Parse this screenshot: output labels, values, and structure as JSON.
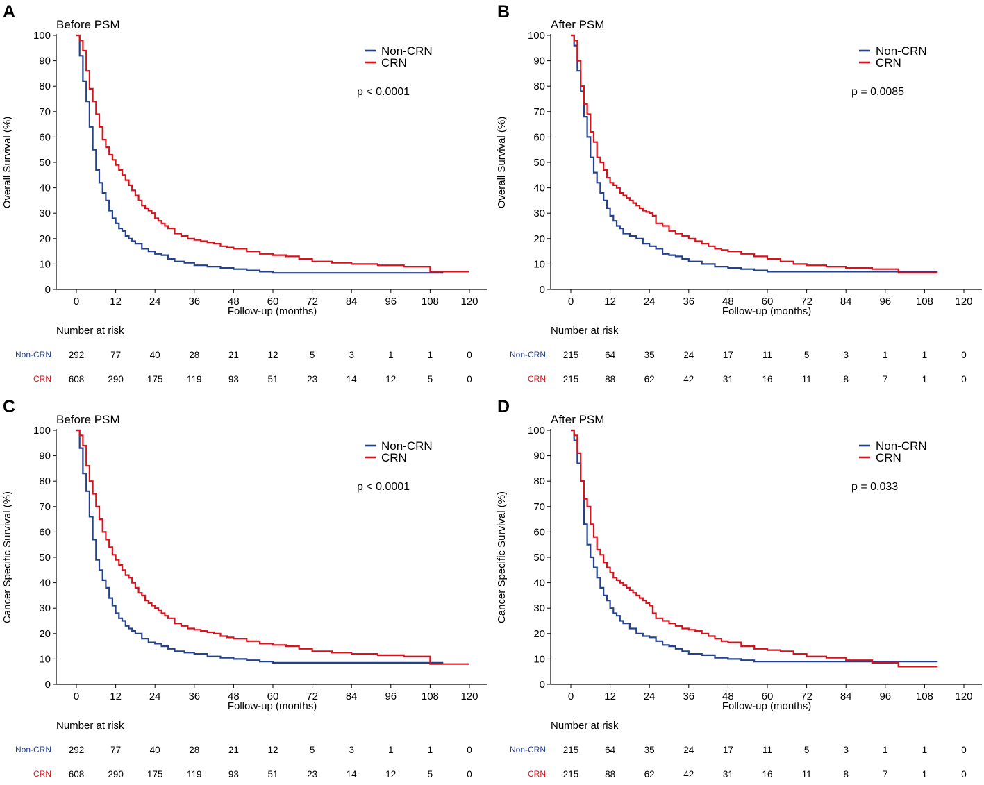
{
  "colors": {
    "noncrn": "#23418c",
    "crn": "#d8111b",
    "axis": "#000000"
  },
  "chart_data": [
    {
      "type": "line",
      "panel_label": "A",
      "title": "Before PSM",
      "xlabel": "Follow-up (months)",
      "ylabel": "Overall Survival (%)",
      "xlim": [
        0,
        120
      ],
      "ylim": [
        0,
        100
      ],
      "xticks": [
        0,
        12,
        24,
        36,
        48,
        60,
        72,
        84,
        96,
        108,
        120
      ],
      "yticks": [
        0,
        10,
        20,
        30,
        40,
        50,
        60,
        70,
        80,
        90,
        100
      ],
      "legend": [
        "Non-CRN",
        "CRN"
      ],
      "pvalue": "p < 0.0001",
      "series": [
        {
          "name": "Non-CRN",
          "color": "#23418c",
          "x": [
            0,
            1,
            2,
            3,
            4,
            5,
            6,
            7,
            8,
            9,
            10,
            11,
            12,
            13,
            14,
            15,
            16,
            17,
            18,
            20,
            22,
            24,
            26,
            28,
            30,
            33,
            36,
            40,
            44,
            48,
            52,
            56,
            60,
            70,
            80,
            100,
            112
          ],
          "y": [
            100,
            92,
            82,
            74,
            64,
            55,
            47,
            42,
            38,
            35,
            31,
            28,
            26,
            24,
            23,
            21,
            20,
            19,
            18,
            16,
            15,
            14,
            13.5,
            12,
            11,
            10.5,
            9.5,
            9,
            8.5,
            8,
            7.5,
            7,
            6.5,
            6.5,
            6.5,
            6.5,
            6.5
          ]
        },
        {
          "name": "CRN",
          "color": "#d8111b",
          "x": [
            0,
            1,
            2,
            3,
            4,
            5,
            6,
            7,
            8,
            9,
            10,
            11,
            12,
            13,
            14,
            15,
            16,
            17,
            18,
            19,
            20,
            21,
            22,
            23,
            24,
            25,
            26,
            27,
            28,
            30,
            32,
            34,
            36,
            38,
            40,
            42,
            44,
            46,
            48,
            52,
            56,
            60,
            64,
            68,
            72,
            78,
            84,
            92,
            100,
            108,
            120
          ],
          "y": [
            100,
            98,
            94,
            86,
            79,
            74,
            69,
            64,
            59,
            56,
            53,
            51,
            49,
            47,
            45,
            43,
            41,
            39,
            37,
            35,
            33,
            32,
            31,
            30,
            28,
            27,
            26,
            25,
            24,
            22,
            21,
            20,
            19.5,
            19,
            18.5,
            18,
            17,
            16.5,
            16,
            15,
            14,
            13.5,
            13,
            12,
            11,
            10.5,
            10,
            9.5,
            9,
            7,
            7
          ]
        }
      ],
      "risk_table": {
        "title": "Number at risk",
        "times": [
          0,
          12,
          24,
          36,
          48,
          60,
          72,
          84,
          96,
          108,
          120
        ],
        "rows": [
          {
            "name": "Non-CRN",
            "values": [
              "292",
              "77",
              "40",
              "28",
              "21",
              "12",
              "5",
              "3",
              "1",
              "1",
              "0"
            ]
          },
          {
            "name": "CRN",
            "values": [
              "608",
              "290",
              "175",
              "119",
              "93",
              "51",
              "23",
              "14",
              "12",
              "5",
              "0"
            ]
          }
        ]
      }
    },
    {
      "type": "line",
      "panel_label": "B",
      "title": "After PSM",
      "xlabel": "Follow-up (months)",
      "ylabel": "Overall Survival (%)",
      "xlim": [
        0,
        120
      ],
      "ylim": [
        0,
        100
      ],
      "xticks": [
        0,
        12,
        24,
        36,
        48,
        60,
        72,
        84,
        96,
        108,
        120
      ],
      "yticks": [
        0,
        10,
        20,
        30,
        40,
        50,
        60,
        70,
        80,
        90,
        100
      ],
      "legend": [
        "Non-CRN",
        "CRN"
      ],
      "pvalue": "p = 0.0085",
      "series": [
        {
          "name": "Non-CRN",
          "color": "#23418c",
          "x": [
            0,
            1,
            2,
            3,
            4,
            5,
            6,
            7,
            8,
            9,
            10,
            11,
            12,
            13,
            14,
            15,
            16,
            18,
            20,
            22,
            24,
            26,
            28,
            30,
            32,
            34,
            36,
            40,
            44,
            48,
            52,
            56,
            60,
            80,
            100,
            112
          ],
          "y": [
            100,
            96,
            86,
            78,
            68,
            60,
            52,
            46,
            42,
            38,
            35,
            32,
            29,
            27,
            25,
            24,
            22,
            21,
            20,
            18,
            17,
            16,
            14,
            13.5,
            13,
            12,
            11,
            10,
            9,
            8.5,
            8,
            7.5,
            7,
            7,
            7,
            7
          ]
        },
        {
          "name": "CRN",
          "color": "#d8111b",
          "x": [
            0,
            1,
            2,
            3,
            4,
            5,
            6,
            7,
            8,
            9,
            10,
            11,
            12,
            13,
            14,
            15,
            16,
            17,
            18,
            19,
            20,
            21,
            22,
            23,
            24,
            25,
            26,
            28,
            30,
            32,
            34,
            36,
            38,
            40,
            42,
            44,
            46,
            48,
            52,
            56,
            60,
            64,
            68,
            72,
            78,
            84,
            92,
            100,
            112
          ],
          "y": [
            100,
            98,
            90,
            80,
            73,
            69,
            62,
            58,
            52,
            50,
            47,
            44,
            42,
            41,
            40,
            38,
            37,
            36,
            35,
            34,
            33,
            32,
            31,
            30.5,
            30,
            29,
            26,
            25,
            23,
            22,
            21,
            20,
            19,
            18,
            17,
            16,
            15.5,
            15,
            14,
            13,
            12,
            11,
            10,
            9.5,
            9,
            8.5,
            8,
            6.5,
            6.5
          ]
        }
      ],
      "risk_table": {
        "title": "Number at risk",
        "times": [
          0,
          12,
          24,
          36,
          48,
          60,
          72,
          84,
          96,
          108,
          120
        ],
        "rows": [
          {
            "name": "Non-CRN",
            "values": [
              "215",
              "64",
              "35",
              "24",
              "17",
              "11",
              "5",
              "3",
              "1",
              "1",
              "0"
            ]
          },
          {
            "name": "CRN",
            "values": [
              "215",
              "88",
              "62",
              "42",
              "31",
              "16",
              "11",
              "8",
              "7",
              "1",
              "0"
            ]
          }
        ]
      }
    },
    {
      "type": "line",
      "panel_label": "C",
      "title": "Before PSM",
      "xlabel": "Follow-up (months)",
      "ylabel": "Cancer Specific Survival (%)",
      "xlim": [
        0,
        120
      ],
      "ylim": [
        0,
        100
      ],
      "xticks": [
        0,
        12,
        24,
        36,
        48,
        60,
        72,
        84,
        96,
        108,
        120
      ],
      "yticks": [
        0,
        10,
        20,
        30,
        40,
        50,
        60,
        70,
        80,
        90,
        100
      ],
      "legend": [
        "Non-CRN",
        "CRN"
      ],
      "pvalue": "p < 0.0001",
      "series": [
        {
          "name": "Non-CRN",
          "color": "#23418c",
          "x": [
            0,
            1,
            2,
            3,
            4,
            5,
            6,
            7,
            8,
            9,
            10,
            11,
            12,
            13,
            14,
            15,
            16,
            17,
            18,
            20,
            22,
            24,
            26,
            28,
            30,
            33,
            36,
            40,
            44,
            48,
            52,
            56,
            60,
            80,
            100,
            112
          ],
          "y": [
            100,
            93,
            83,
            76,
            66,
            57,
            49,
            45,
            41,
            38,
            34,
            31,
            28,
            26,
            25,
            23,
            22,
            21,
            20,
            18,
            16.5,
            16,
            15,
            14,
            13,
            12.5,
            12,
            11,
            10.5,
            10,
            9.5,
            9,
            8.5,
            8.5,
            8.5,
            8.5
          ]
        },
        {
          "name": "CRN",
          "color": "#d8111b",
          "x": [
            0,
            1,
            2,
            3,
            4,
            5,
            6,
            7,
            8,
            9,
            10,
            11,
            12,
            13,
            14,
            15,
            16,
            17,
            18,
            19,
            20,
            21,
            22,
            23,
            24,
            25,
            26,
            27,
            28,
            30,
            32,
            34,
            36,
            38,
            40,
            42,
            44,
            46,
            48,
            52,
            56,
            60,
            64,
            68,
            72,
            78,
            84,
            92,
            100,
            108,
            120
          ],
          "y": [
            100,
            98,
            94,
            86,
            80,
            75,
            70,
            65,
            60,
            57,
            54,
            51,
            49,
            47,
            45,
            43,
            42,
            40,
            38,
            36,
            35,
            33,
            32,
            31,
            30,
            29,
            28,
            27,
            26,
            24,
            23,
            22,
            21.5,
            21,
            20.5,
            20,
            19,
            18.5,
            18,
            17,
            16,
            15.5,
            15,
            14,
            13,
            12.5,
            12,
            11.5,
            11,
            8,
            8
          ]
        }
      ],
      "risk_table": {
        "title": "Number at risk",
        "times": [
          0,
          12,
          24,
          36,
          48,
          60,
          72,
          84,
          96,
          108,
          120
        ],
        "rows": [
          {
            "name": "Non-CRN",
            "values": [
              "292",
              "77",
              "40",
              "28",
              "21",
              "12",
              "5",
              "3",
              "1",
              "1",
              "0"
            ]
          },
          {
            "name": "CRN",
            "values": [
              "608",
              "290",
              "175",
              "119",
              "93",
              "51",
              "23",
              "14",
              "12",
              "5",
              "0"
            ]
          }
        ]
      }
    },
    {
      "type": "line",
      "panel_label": "D",
      "title": "After PSM",
      "xlabel": "Follow-up (months)",
      "ylabel": "Cancer Specific Survival (%)",
      "xlim": [
        0,
        120
      ],
      "ylim": [
        0,
        100
      ],
      "xticks": [
        0,
        12,
        24,
        36,
        48,
        60,
        72,
        84,
        96,
        108,
        120
      ],
      "yticks": [
        0,
        10,
        20,
        30,
        40,
        50,
        60,
        70,
        80,
        90,
        100
      ],
      "legend": [
        "Non-CRN",
        "CRN"
      ],
      "pvalue": "p = 0.033",
      "series": [
        {
          "name": "Non-CRN",
          "color": "#23418c",
          "x": [
            0,
            1,
            2,
            3,
            4,
            5,
            6,
            7,
            8,
            9,
            10,
            11,
            12,
            13,
            14,
            15,
            16,
            18,
            20,
            22,
            24,
            26,
            28,
            30,
            32,
            34,
            36,
            40,
            44,
            48,
            52,
            56,
            60,
            80,
            100,
            112
          ],
          "y": [
            100,
            96,
            87,
            80,
            63,
            55,
            50,
            46,
            42,
            38,
            35,
            33,
            30,
            28,
            27,
            25,
            24,
            22,
            20,
            19,
            18.5,
            17,
            15.5,
            15,
            14,
            13,
            12,
            11.5,
            10.5,
            10,
            9.5,
            9,
            9,
            9,
            9,
            9
          ]
        },
        {
          "name": "CRN",
          "color": "#d8111b",
          "x": [
            0,
            1,
            2,
            3,
            4,
            5,
            6,
            7,
            8,
            9,
            10,
            11,
            12,
            13,
            14,
            15,
            16,
            17,
            18,
            19,
            20,
            21,
            22,
            23,
            24,
            25,
            26,
            28,
            30,
            32,
            34,
            36,
            38,
            40,
            42,
            44,
            46,
            48,
            52,
            56,
            60,
            64,
            68,
            72,
            78,
            84,
            92,
            100,
            112
          ],
          "y": [
            100,
            98,
            91,
            80,
            73,
            70,
            63,
            58,
            53,
            51,
            48,
            46,
            44,
            42,
            41,
            40,
            39,
            38,
            37,
            36,
            35,
            34,
            33,
            32,
            31,
            28,
            26,
            25,
            24,
            23,
            22,
            21.5,
            21,
            20,
            19,
            18,
            17,
            16.5,
            15,
            14,
            13.5,
            13,
            12,
            11,
            10.5,
            9.5,
            8.5,
            7,
            7
          ]
        }
      ],
      "risk_table": {
        "title": "Number at risk",
        "times": [
          0,
          12,
          24,
          36,
          48,
          60,
          72,
          84,
          96,
          108,
          120
        ],
        "rows": [
          {
            "name": "Non-CRN",
            "values": [
              "215",
              "64",
              "35",
              "24",
              "17",
              "11",
              "5",
              "3",
              "1",
              "1",
              "0"
            ]
          },
          {
            "name": "CRN",
            "values": [
              "215",
              "88",
              "62",
              "42",
              "31",
              "16",
              "11",
              "8",
              "7",
              "1",
              "0"
            ]
          }
        ]
      }
    }
  ]
}
